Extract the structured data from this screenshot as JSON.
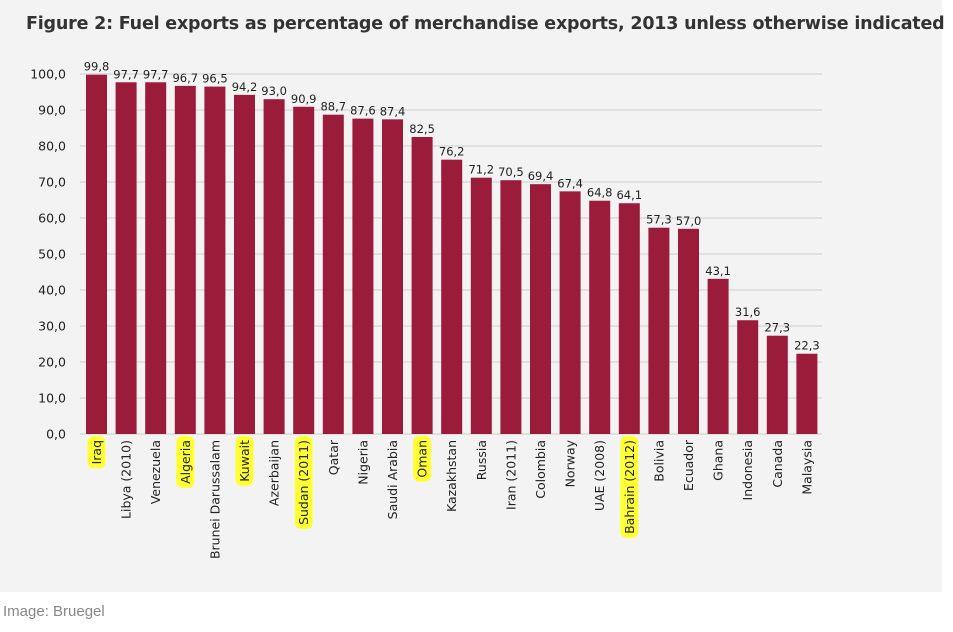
{
  "caption": "Image: Bruegel",
  "colors": {
    "bar": "#9b1b3a",
    "highlight": "#ffff33",
    "grid": "#cccccc"
  },
  "chart_data": {
    "type": "bar",
    "title": "Figure 2: Fuel exports as percentage of merchandise exports, 2013 unless otherwise indicated",
    "xlabel": "",
    "ylabel": "",
    "ylim": [
      0,
      100
    ],
    "yticks": [
      "0,0",
      "10,0",
      "20,0",
      "30,0",
      "40,0",
      "50,0",
      "60,0",
      "70,0",
      "80,0",
      "90,0",
      "100,0"
    ],
    "grid": true,
    "categories": [
      "Iraq",
      "Libya (2010)",
      "Venezuela",
      "Algeria",
      "Brunei Darussalam",
      "Kuwait",
      "Azerbaijan",
      "Sudan (2011)",
      "Qatar",
      "Nigeria",
      "Saudi Arabia",
      "Oman",
      "Kazakhstan",
      "Russia",
      "Iran (2011)",
      "Colombia",
      "Norway",
      "UAE (2008)",
      "Bahrain (2012)",
      "Bolivia",
      "Ecuador",
      "Ghana",
      "Indonesia",
      "Canada",
      "Malaysia"
    ],
    "values": [
      99.8,
      97.7,
      97.7,
      96.7,
      96.5,
      94.2,
      93.0,
      90.9,
      88.7,
      87.6,
      87.4,
      82.5,
      76.2,
      71.2,
      70.5,
      69.4,
      67.4,
      64.8,
      64.1,
      57.3,
      57.0,
      43.1,
      31.6,
      27.3,
      22.3
    ],
    "value_labels": [
      "99,8",
      "97,7",
      "97,7",
      "96,7",
      "96,5",
      "94,2",
      "93,0",
      "90,9",
      "88,7",
      "87,6",
      "87,4",
      "82,5",
      "76,2",
      "71,2",
      "70,5",
      "69,4",
      "67,4",
      "64,8",
      "64,1",
      "57,3",
      "57,0",
      "43,1",
      "31,6",
      "27,3",
      "22,3"
    ],
    "highlighted": [
      "Iraq",
      "Algeria",
      "Kuwait",
      "Sudan (2011)",
      "Oman",
      "Bahrain (2012)"
    ]
  }
}
